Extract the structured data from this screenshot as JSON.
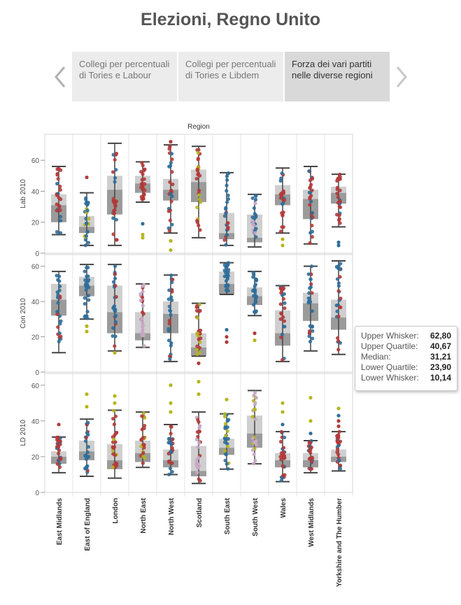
{
  "title": "Elezioni, Regno Unito",
  "tabs": [
    {
      "label": "Collegi per percentuali di Tories e Labour"
    },
    {
      "label": "Collegi per percentuali di Tories e Libdem"
    },
    {
      "label": "Forza dei vari partiti nelle diverse regioni"
    }
  ],
  "tooltip": {
    "rows": [
      {
        "label": "Upper Whisker:",
        "value": "62,80"
      },
      {
        "label": "Upper Quartile:",
        "value": "40,67"
      },
      {
        "label": "Median:",
        "value": "31,21"
      },
      {
        "label": "Lower Quartile:",
        "value": "23,90"
      },
      {
        "label": "Lower Whisker:",
        "value": "10,14"
      }
    ]
  },
  "colors": {
    "conservative": "#2f6e9a",
    "labour": "#b23a3a",
    "libdem": "#b5b51e",
    "other": "#c9a9c6",
    "box_light": "#cfcfcf",
    "box_dark": "#9b9b9b",
    "whisker": "#444444"
  },
  "chart_data": {
    "type": "box",
    "title": "Region",
    "categories": [
      "East Midlands",
      "East of England",
      "London",
      "North East",
      "North West",
      "Scotland",
      "South East",
      "South West",
      "Wales",
      "West Midlands",
      "Yorkshire and The Humber"
    ],
    "panels": [
      {
        "ylabel": "Lab 2010",
        "ylim": [
          0,
          75
        ],
        "yticks": [
          0,
          20,
          40,
          60
        ],
        "boxes": [
          {
            "lw": 12,
            "lq": 20,
            "med": 31,
            "uq": 38,
            "uw": 56,
            "dom": "labour",
            "sec": "conservative"
          },
          {
            "lw": 5,
            "lq": 13,
            "med": 17,
            "uq": 24,
            "uw": 39,
            "dom": "conservative",
            "sec": "libdem",
            "out": [
              {
                "y": 49,
                "c": "labour"
              }
            ]
          },
          {
            "lw": 5,
            "lq": 25,
            "med": 41,
            "uq": 50,
            "uw": 71,
            "dom": "labour",
            "sec": "conservative"
          },
          {
            "lw": 33,
            "lq": 39,
            "med": 45,
            "uq": 50,
            "uw": 59,
            "dom": "labour",
            "sec": "labour",
            "out": [
              {
                "y": 19,
                "c": "conservative"
              },
              {
                "y": 12,
                "c": "libdem"
              },
              {
                "y": 10,
                "c": "libdem"
              }
            ]
          },
          {
            "lw": 13,
            "lq": 34,
            "med": 41,
            "uq": 48,
            "uw": 70,
            "dom": "labour",
            "sec": "conservative",
            "out": [
              {
                "y": 72,
                "c": "labour"
              },
              {
                "y": 8,
                "c": "libdem"
              },
              {
                "y": 2,
                "c": "libdem"
              }
            ]
          },
          {
            "lw": 10,
            "lq": 33,
            "med": 46,
            "uq": 54,
            "uw": 69,
            "dom": "labour",
            "sec": "libdem"
          },
          {
            "lw": 5,
            "lq": 9,
            "med": 13,
            "uq": 26,
            "uw": 52,
            "dom": "conservative",
            "sec": "labour"
          },
          {
            "lw": 4,
            "lq": 7,
            "med": 10,
            "uq": 25,
            "uw": 38,
            "dom": "conservative",
            "sec": "other"
          },
          {
            "lw": 13,
            "lq": 31,
            "med": 38,
            "uq": 44,
            "uw": 55,
            "dom": "labour",
            "sec": "conservative",
            "out": [
              {
                "y": 9,
                "c": "libdem"
              },
              {
                "y": 5,
                "c": "libdem"
              }
            ]
          },
          {
            "lw": 6,
            "lq": 22,
            "med": 35,
            "uq": 41,
            "uw": 56,
            "dom": "labour",
            "sec": "conservative"
          },
          {
            "lw": 17,
            "lq": 32,
            "med": 39,
            "uq": 43,
            "uw": 51,
            "dom": "labour",
            "sec": "conservative",
            "out": [
              {
                "y": 7,
                "c": "conservative"
              },
              {
                "y": 5,
                "c": "conservative"
              }
            ]
          }
        ]
      },
      {
        "ylabel": "Con 2010",
        "ylim": [
          0,
          65
        ],
        "yticks": [
          0,
          20,
          40,
          60
        ],
        "boxes": [
          {
            "lw": 11,
            "lq": 32,
            "med": 41,
            "uq": 50,
            "uw": 57,
            "dom": "conservative",
            "sec": "labour"
          },
          {
            "lw": 30,
            "lq": 43,
            "med": 49,
            "uq": 54,
            "uw": 61,
            "dom": "conservative",
            "sec": "conservative",
            "out": [
              {
                "y": 26,
                "c": "libdem"
              },
              {
                "y": 23,
                "c": "libdem"
              }
            ]
          },
          {
            "lw": 12,
            "lq": 22,
            "med": 34,
            "uq": 49,
            "uw": 61,
            "dom": "conservative",
            "sec": "labour",
            "out": [
              {
                "y": 11,
                "c": "libdem"
              }
            ]
          },
          {
            "lw": 14,
            "lq": 18,
            "med": 22,
            "uq": 34,
            "uw": 50,
            "dom": "other",
            "sec": "labour"
          },
          {
            "lw": 6,
            "lq": 22,
            "med": 33,
            "uq": 40,
            "uw": 55,
            "dom": "conservative",
            "sec": "labour"
          },
          {
            "lw": 9,
            "lq": 9,
            "med": 14,
            "uq": 22,
            "uw": 39,
            "dom": "labour",
            "sec": "libdem",
            "out": [
              {
                "y": 5,
                "c": "labour"
              }
            ]
          },
          {
            "lw": 44,
            "lq": 44,
            "med": 50,
            "uq": 57,
            "uw": 62,
            "dom": "conservative",
            "sec": "conservative",
            "out": [
              {
                "y": 24,
                "c": "conservative"
              },
              {
                "y": 20,
                "c": "labour"
              },
              {
                "y": 17,
                "c": "labour"
              }
            ]
          },
          {
            "lw": 32,
            "lq": 38,
            "med": 43,
            "uq": 48,
            "uw": 57,
            "dom": "conservative",
            "sec": "conservative",
            "out": [
              {
                "y": 22,
                "c": "labour"
              },
              {
                "y": 18,
                "c": "libdem"
              }
            ]
          },
          {
            "lw": 6,
            "lq": 15,
            "med": 22,
            "uq": 35,
            "uw": 49,
            "dom": "labour",
            "sec": "conservative"
          },
          {
            "lw": 12,
            "lq": 29,
            "med": 39,
            "uq": 45,
            "uw": 60,
            "dom": "conservative",
            "sec": "labour"
          },
          {
            "lw": 10,
            "lq": 24,
            "med": 31,
            "uq": 41,
            "uw": 63,
            "dom": "conservative",
            "sec": "labour"
          }
        ]
      },
      {
        "ylabel": "LD 2010",
        "ylim": [
          0,
          65
        ],
        "yticks": [
          0,
          20,
          40,
          60
        ],
        "boxes": [
          {
            "lw": 11,
            "lq": 16,
            "med": 20,
            "uq": 23,
            "uw": 31,
            "dom": "labour",
            "sec": "conservative",
            "out": [
              {
                "y": 38,
                "c": "labour"
              }
            ]
          },
          {
            "lw": 9,
            "lq": 18,
            "med": 23,
            "uq": 29,
            "uw": 41,
            "dom": "conservative",
            "sec": "labour",
            "out": [
              {
                "y": 55,
                "c": "libdem"
              },
              {
                "y": 48,
                "c": "libdem"
              }
            ]
          },
          {
            "lw": 8,
            "lq": 13,
            "med": 18,
            "uq": 27,
            "uw": 46,
            "dom": "labour",
            "sec": "libdem",
            "out": [
              {
                "y": 54,
                "c": "libdem"
              },
              {
                "y": 50,
                "c": "libdem"
              }
            ]
          },
          {
            "lw": 14,
            "lq": 17,
            "med": 22,
            "uq": 29,
            "uw": 45,
            "dom": "labour",
            "sec": "libdem"
          },
          {
            "lw": 10,
            "lq": 14,
            "med": 18,
            "uq": 24,
            "uw": 38,
            "dom": "labour",
            "sec": "conservative",
            "out": [
              {
                "y": 60,
                "c": "libdem"
              },
              {
                "y": 50,
                "c": "libdem"
              },
              {
                "y": 45,
                "c": "libdem"
              }
            ]
          },
          {
            "lw": 5,
            "lq": 9,
            "med": 12,
            "uq": 26,
            "uw": 45,
            "dom": "other",
            "sec": "labour",
            "out": [
              {
                "y": 62,
                "c": "libdem"
              },
              {
                "y": 55,
                "c": "libdem"
              }
            ]
          },
          {
            "lw": 13,
            "lq": 21,
            "med": 25,
            "uq": 30,
            "uw": 44,
            "dom": "conservative",
            "sec": "libdem",
            "out": [
              {
                "y": 52,
                "c": "libdem"
              }
            ]
          },
          {
            "lw": 16,
            "lq": 25,
            "med": 33,
            "uq": 43,
            "uw": 57,
            "dom": "other",
            "sec": "libdem"
          },
          {
            "lw": 6,
            "lq": 14,
            "med": 18,
            "uq": 22,
            "uw": 34,
            "dom": "labour",
            "sec": "conservative",
            "out": [
              {
                "y": 50,
                "c": "libdem"
              },
              {
                "y": 45,
                "c": "libdem"
              },
              {
                "y": 38,
                "c": "conservative"
              }
            ]
          },
          {
            "lw": 11,
            "lq": 14,
            "med": 18,
            "uq": 22,
            "uw": 29,
            "dom": "labour",
            "sec": "conservative",
            "out": [
              {
                "y": 53,
                "c": "libdem"
              },
              {
                "y": 40,
                "c": "libdem"
              },
              {
                "y": 33,
                "c": "conservative"
              }
            ]
          },
          {
            "lw": 12,
            "lq": 17,
            "med": 20,
            "uq": 24,
            "uw": 34,
            "dom": "labour",
            "sec": "conservative",
            "out": [
              {
                "y": 47,
                "c": "libdem"
              },
              {
                "y": 43,
                "c": "conservative"
              },
              {
                "y": 40,
                "c": "labour"
              },
              {
                "y": 37,
                "c": "labour"
              }
            ]
          }
        ]
      }
    ]
  }
}
